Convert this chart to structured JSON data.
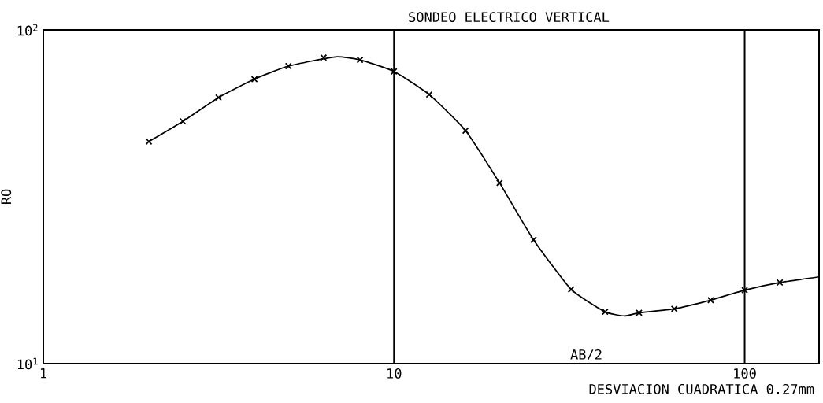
{
  "chart_data": {
    "type": "scatter",
    "title": "SONDEO ELECTRICO VERTICAL",
    "xlabel": "AB/2",
    "ylabel": "RO",
    "annotations": [
      "DESVIACION CUADRATICA 0.27mm"
    ],
    "log": "xy",
    "grid": "x",
    "marker": "cross",
    "xlim": [
      1,
      163
    ],
    "ylim": [
      10,
      100
    ],
    "xticks": [
      1,
      10,
      100
    ],
    "yticks": [
      {
        "value": 10,
        "label": "10$^{1}$"
      },
      {
        "value": 100,
        "label": "10$^{2}$"
      }
    ],
    "series": [
      {
        "color": "#000000",
        "x": [
          2.0,
          2.5,
          3.16,
          4,
          5,
          6.3,
          8,
          10,
          12.6,
          16,
          20,
          25,
          32,
          40,
          50,
          63,
          80,
          100,
          126
        ],
        "values": [
          46.3,
          53.2,
          62.7,
          71.2,
          77.9,
          82.6,
          81.3,
          75.1,
          64.0,
          49.9,
          34.8,
          23.5,
          16.7,
          14.3,
          14.2,
          14.6,
          15.5,
          16.6,
          17.5
        ]
      },
      {
        "type": "line",
        "color": "#000000",
        "marker": "none",
        "x": [
          2.0,
          2.5,
          3.16,
          4,
          5,
          6.8,
          8,
          10,
          12.6,
          16,
          20,
          25,
          32,
          40,
          45.5,
          50,
          63,
          80,
          100,
          126,
          163
        ],
        "values": [
          46.3,
          53.2,
          62.7,
          71.2,
          77.9,
          83,
          81.3,
          75.1,
          64.0,
          49.9,
          34.8,
          23.5,
          16.7,
          14.3,
          13.9,
          14.2,
          14.6,
          15.5,
          16.6,
          17.5,
          18.2
        ]
      }
    ]
  }
}
